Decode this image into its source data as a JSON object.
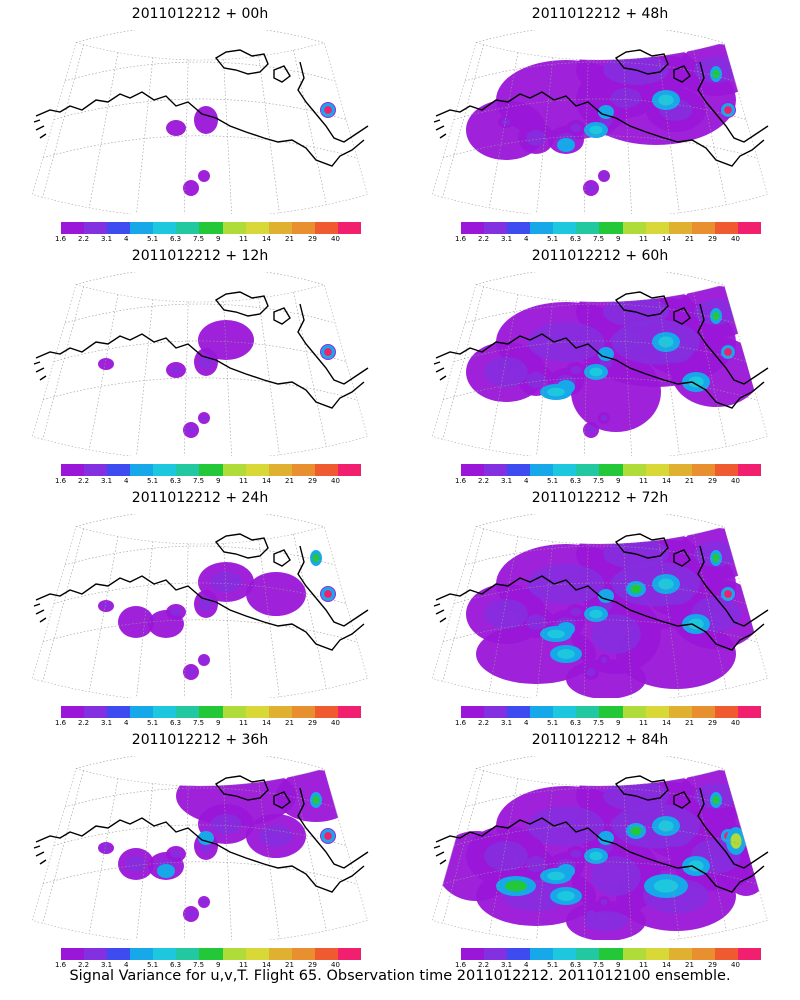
{
  "palette": [
    "#9a16d8",
    "#8330e0",
    "#3d4bf0",
    "#16a8e8",
    "#1dc8de",
    "#22c8a0",
    "#22c838",
    "#b0dc3a",
    "#d8d838",
    "#e0b030",
    "#e89030",
    "#f05a30",
    "#f0206e"
  ],
  "colorbar_ticks": [
    "1.6",
    "2.2",
    "3.1",
    "4",
    "5.1",
    "6.3",
    "7.5",
    "9",
    "11",
    "14",
    "21",
    "29",
    "40"
  ],
  "panels": [
    {
      "title": "2011012212 + 00h",
      "intensity": 0
    },
    {
      "title": "2011012212 + 48h",
      "intensity": 4
    },
    {
      "title": "2011012212 + 12h",
      "intensity": 1
    },
    {
      "title": "2011012212 + 60h",
      "intensity": 5
    },
    {
      "title": "2011012212 + 24h",
      "intensity": 2
    },
    {
      "title": "2011012212 + 72h",
      "intensity": 6
    },
    {
      "title": "2011012212 + 36h",
      "intensity": 3
    },
    {
      "title": "2011012212 + 84h",
      "intensity": 7
    }
  ],
  "footer": "Signal Variance for u,v,T. Flight 65. Observation time 2011012212. 2011012100 ensemble."
}
